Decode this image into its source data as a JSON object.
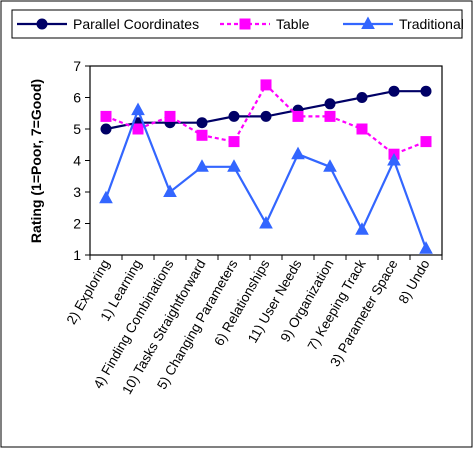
{
  "chart_data": {
    "type": "line",
    "ylabel": "Rating (1=Poor, 7=Good)",
    "ylim": [
      1,
      7
    ],
    "yticks": [
      1,
      2,
      3,
      4,
      5,
      6,
      7
    ],
    "grid": false,
    "legend_position": "top",
    "categories": [
      "2) Exploring",
      "1) Learning",
      "4) Finding Combinations",
      "10) Tasks Straightforward",
      "5) Changing Parameters",
      "6) Relationships",
      "11) User Needs",
      "9) Organization",
      "7) Keeping Track",
      "3) Parameter Space",
      "8) Undo"
    ],
    "series": [
      {
        "name": "Parallel Coordinates",
        "color": "#000066",
        "marker": "circle",
        "dash": "solid",
        "values": [
          5.0,
          5.2,
          5.2,
          5.2,
          5.4,
          5.4,
          5.6,
          5.8,
          6.0,
          6.2,
          6.2
        ]
      },
      {
        "name": "Table",
        "color": "#ff00ff",
        "marker": "square",
        "dash": "dashed",
        "values": [
          5.4,
          5.0,
          5.4,
          4.8,
          4.6,
          6.4,
          5.4,
          5.4,
          5.0,
          4.2,
          4.6
        ]
      },
      {
        "name": "Traditional",
        "color": "#3366ff",
        "marker": "triangle",
        "dash": "solid",
        "values": [
          2.8,
          5.6,
          3.0,
          3.8,
          3.8,
          2.0,
          4.2,
          3.8,
          1.8,
          4.0,
          1.2
        ]
      }
    ]
  }
}
